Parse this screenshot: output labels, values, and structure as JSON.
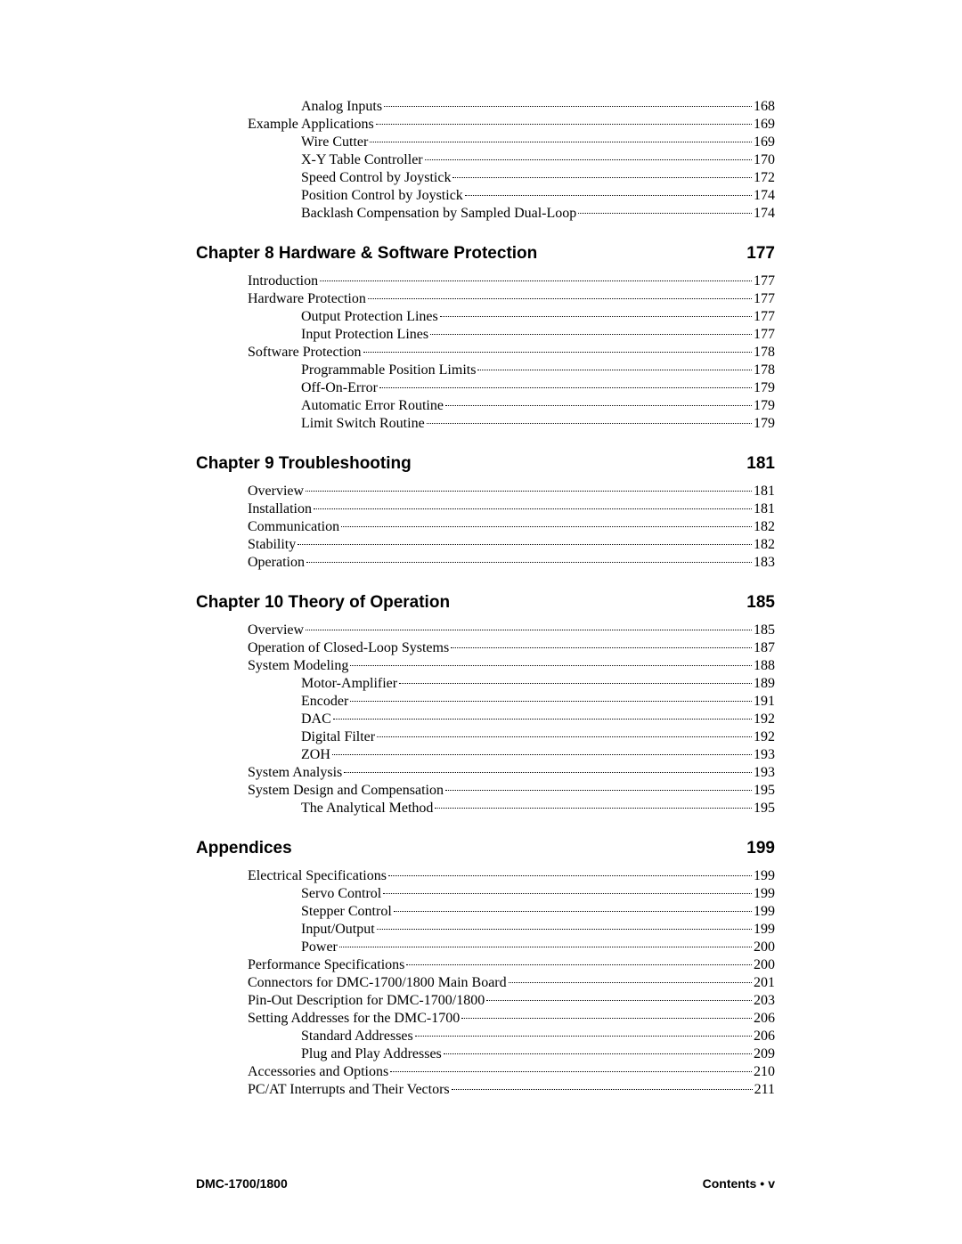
{
  "pre_entries": [
    {
      "label": "Analog Inputs",
      "page": "168",
      "level": 2
    },
    {
      "label": "Example Applications",
      "page": "169",
      "level": 1
    },
    {
      "label": "Wire Cutter",
      "page": "169",
      "level": 2
    },
    {
      "label": "X-Y Table Controller",
      "page": "170",
      "level": 2
    },
    {
      "label": "Speed Control by Joystick",
      "page": "172",
      "level": 2
    },
    {
      "label": "Position Control by Joystick",
      "page": "174",
      "level": 2
    },
    {
      "label": "Backlash Compensation by Sampled Dual-Loop",
      "page": "174",
      "level": 2
    }
  ],
  "chapters": [
    {
      "title": "Chapter 8  Hardware & Software Protection",
      "page": "177",
      "entries": [
        {
          "label": "Introduction",
          "page": "177",
          "level": 1
        },
        {
          "label": "Hardware Protection",
          "page": "177",
          "level": 1
        },
        {
          "label": "Output Protection Lines",
          "page": "177",
          "level": 2
        },
        {
          "label": "Input Protection Lines",
          "page": "177",
          "level": 2
        },
        {
          "label": "Software Protection",
          "page": "178",
          "level": 1
        },
        {
          "label": "Programmable Position Limits",
          "page": "178",
          "level": 2
        },
        {
          "label": "Off-On-Error",
          "page": "179",
          "level": 2
        },
        {
          "label": "Automatic Error Routine",
          "page": "179",
          "level": 2
        },
        {
          "label": "Limit Switch Routine",
          "page": "179",
          "level": 2
        }
      ]
    },
    {
      "title": "Chapter 9 Troubleshooting",
      "page": "181",
      "entries": [
        {
          "label": "Overview",
          "page": "181",
          "level": 1
        },
        {
          "label": "Installation",
          "page": "181",
          "level": 1
        },
        {
          "label": "Communication",
          "page": "182",
          "level": 1
        },
        {
          "label": "Stability",
          "page": "182",
          "level": 1
        },
        {
          "label": "Operation",
          "page": "183",
          "level": 1
        }
      ]
    },
    {
      "title": "Chapter 10 Theory of Operation",
      "page": "185",
      "entries": [
        {
          "label": "Overview",
          "page": "185",
          "level": 1
        },
        {
          "label": "Operation of Closed-Loop Systems",
          "page": "187",
          "level": 1
        },
        {
          "label": "System Modeling",
          "page": "188",
          "level": 1
        },
        {
          "label": "Motor-Amplifier",
          "page": "189",
          "level": 2
        },
        {
          "label": "Encoder",
          "page": "191",
          "level": 2
        },
        {
          "label": "DAC",
          "page": "192",
          "level": 2
        },
        {
          "label": "Digital Filter",
          "page": "192",
          "level": 2
        },
        {
          "label": "ZOH",
          "page": "193",
          "level": 2
        },
        {
          "label": "System Analysis",
          "page": "193",
          "level": 1
        },
        {
          "label": "System Design and Compensation",
          "page": "195",
          "level": 1
        },
        {
          "label": "The Analytical Method",
          "page": "195",
          "level": 2
        }
      ]
    },
    {
      "title": "Appendices",
      "page": "199",
      "entries": [
        {
          "label": "Electrical Specifications",
          "page": "199",
          "level": 1
        },
        {
          "label": "Servo Control",
          "page": "199",
          "level": 2
        },
        {
          "label": "Stepper Control",
          "page": "199",
          "level": 2
        },
        {
          "label": "Input/Output",
          "page": "199",
          "level": 2
        },
        {
          "label": "Power",
          "page": "200",
          "level": 2
        },
        {
          "label": "Performance Specifications",
          "page": "200",
          "level": 1
        },
        {
          "label": "Connectors for DMC-1700/1800 Main Board",
          "page": "201",
          "level": 1
        },
        {
          "label": "Pin-Out Description for DMC-1700/1800",
          "page": "203",
          "level": 1
        },
        {
          "label": "Setting Addresses for the DMC-1700",
          "page": "206",
          "level": 1
        },
        {
          "label": "Standard Addresses",
          "page": "206",
          "level": 2
        },
        {
          "label": "Plug and Play Addresses",
          "page": "209",
          "level": 2
        },
        {
          "label": "Accessories and Options",
          "page": "210",
          "level": 1
        },
        {
          "label": "PC/AT Interrupts and Their Vectors",
          "page": "211",
          "level": 1
        }
      ]
    }
  ],
  "footer": {
    "left": "DMC-1700/1800",
    "right_label": "Contents",
    "right_page": "v"
  }
}
